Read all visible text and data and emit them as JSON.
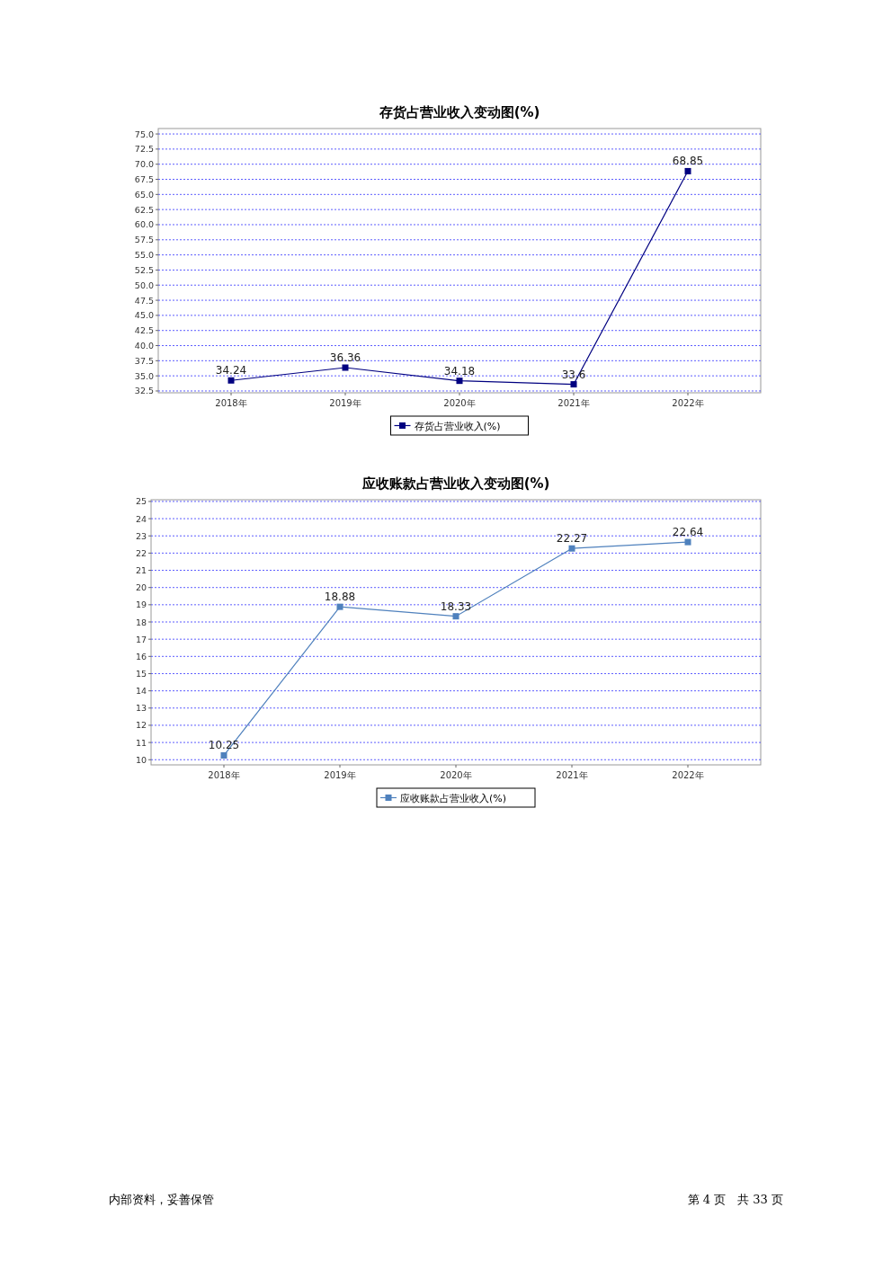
{
  "chart_data": [
    {
      "type": "line",
      "title": "存货占营业收入变动图(%)",
      "categories": [
        "2018年",
        "2019年",
        "2020年",
        "2021年",
        "2022年"
      ],
      "series": [
        {
          "name": "存货占营业收入(%)",
          "color": "#000080",
          "values": [
            34.24,
            36.36,
            34.18,
            33.6,
            68.85
          ]
        }
      ],
      "ylim": [
        32.2,
        75.9
      ],
      "yticks": [
        {
          "value": 32.5,
          "label": "32.5"
        },
        {
          "value": 35,
          "label": "35.0"
        },
        {
          "value": 37.5,
          "label": "37.5"
        },
        {
          "value": 40,
          "label": "40.0"
        },
        {
          "value": 42.5,
          "label": "42.5"
        },
        {
          "value": 45,
          "label": "45.0"
        },
        {
          "value": 47.5,
          "label": "47.5"
        },
        {
          "value": 50,
          "label": "50.0"
        },
        {
          "value": 52.5,
          "label": "52.5"
        },
        {
          "value": 55,
          "label": "55.0"
        },
        {
          "value": 57.5,
          "label": "57.5"
        },
        {
          "value": 60,
          "label": "60.0"
        },
        {
          "value": 62.5,
          "label": "62.5"
        },
        {
          "value": 65,
          "label": "65.0"
        },
        {
          "value": 67.5,
          "label": "67.5"
        },
        {
          "value": 70,
          "label": "70.0"
        },
        {
          "value": 72.5,
          "label": "72.5"
        },
        {
          "value": 75,
          "label": "75.0"
        }
      ],
      "grid": "y",
      "legend": "bottom",
      "marker": "square",
      "line_style": "solid",
      "data_labels": true
    },
    {
      "type": "line",
      "title": "应收账款占营业收入变动图(%)",
      "categories": [
        "2018年",
        "2019年",
        "2020年",
        "2021年",
        "2022年"
      ],
      "series": [
        {
          "name": "应收账款占营业收入(%)",
          "color": "#4f81bd",
          "values": [
            10.25,
            18.88,
            18.33,
            22.27,
            22.64
          ]
        }
      ],
      "ylim": [
        9.7,
        25.1
      ],
      "yticks": [
        10,
        11,
        12,
        13,
        14,
        15,
        16,
        17,
        18,
        19,
        20,
        21,
        22,
        23,
        24,
        25
      ],
      "grid": "y",
      "legend": "bottom",
      "marker": "square",
      "line_style": "solid",
      "data_labels": true,
      "annotations": [
        "内部资料，妥善保管",
        "第 4 页　共 33 页"
      ]
    }
  ]
}
